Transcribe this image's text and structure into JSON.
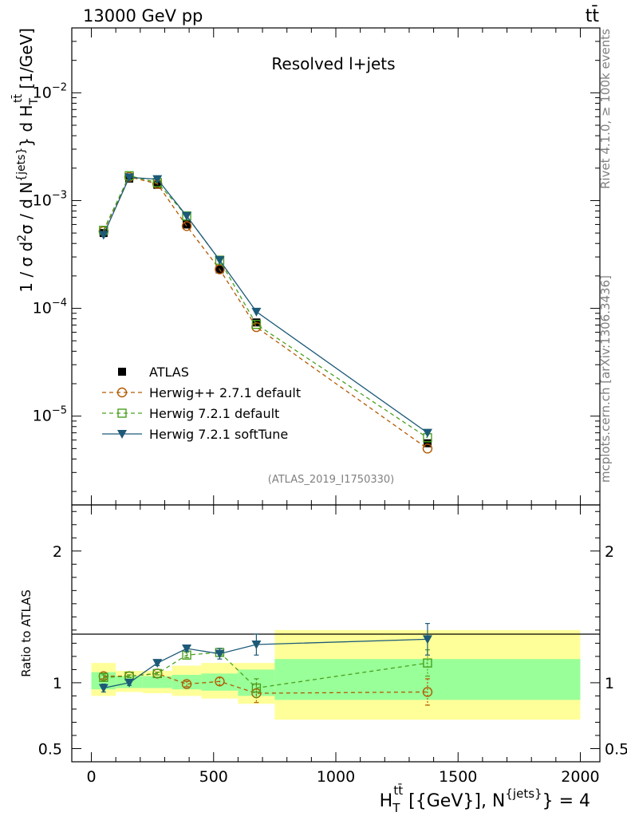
{
  "header": {
    "energy_label": "13000 GeV pp",
    "process": "tt̄"
  },
  "side": {
    "rivet": "Rivet 4.1.0, ≥ 100k events",
    "mcplots": "mcplots.cern.ch [arXiv:1306.3436]"
  },
  "colors": {
    "atlas": "#000000",
    "hpp": "#b35900",
    "h721": "#4b9f1e",
    "soft": "#1c5a78",
    "band_inner": "#99ff99",
    "band_outer": "#ffff99"
  },
  "chart_data": [
    {
      "type": "line",
      "panel": "main",
      "title": "Resolved l+jets",
      "watermark": "(ATLAS_2019_I1750330)",
      "ylabel": "1 / σ d²σ / d N^{jets} d H_T^{t̄t} [1/GeV]",
      "yscale": "log",
      "ylim": [
        1.5e-06,
        0.04
      ],
      "xlim": [
        -80,
        2080
      ],
      "y_ticks": [
        "10^{-5}",
        "10^{-4}",
        "10^{-3}",
        "10^{-2}"
      ],
      "bin_edges": [
        0,
        100,
        210,
        330,
        450,
        600,
        750,
        2000
      ],
      "x": [
        50,
        155,
        270,
        390,
        525,
        675,
        1375
      ],
      "legend": [
        "ATLAS",
        "Herwig++ 2.7.1 default",
        "Herwig 7.2.1 default",
        "Herwig 7.2.1 softTune"
      ],
      "series": [
        {
          "name": "ATLAS",
          "values": [
            0.0005,
            0.0016,
            0.0014,
            0.0006,
            0.00023,
            7.4e-05,
            5.6e-06
          ]
        },
        {
          "name": "Herwig++ 2.7.1 default",
          "values": [
            0.00052,
            0.00166,
            0.00143,
            0.00058,
            0.00023,
            6.7e-05,
            5e-06
          ]
        },
        {
          "name": "Herwig 7.2.1 default",
          "values": [
            0.00053,
            0.0017,
            0.00147,
            0.00072,
            0.00028,
            7.1e-05,
            6.3e-06
          ]
        },
        {
          "name": "Herwig 7.2.1 softTune",
          "values": [
            0.00048,
            0.00164,
            0.00158,
            0.00072,
            0.00028,
            9.3e-05,
            7e-06
          ]
        }
      ]
    },
    {
      "type": "line",
      "panel": "ratio",
      "ylabel": "Ratio to ATLAS",
      "xlabel": "H_T^{t̄t} [{GeV}], N^{jets} = 4",
      "ylim": [
        0.4,
        2.35
      ],
      "xlim": [
        -80,
        2080
      ],
      "x_ticks": [
        0,
        500,
        1000,
        1500,
        2000
      ],
      "x_tick_labels": [
        "0",
        "500",
        "1000",
        "1500",
        "2000"
      ],
      "y_ticks": [
        0.5,
        1,
        2
      ],
      "y_tick_labels": [
        "0.5",
        "1",
        "2"
      ],
      "bin_edges": [
        0,
        100,
        210,
        330,
        450,
        600,
        750,
        2000
      ],
      "band_inner": [
        [
          0.95,
          1.08
        ],
        [
          0.96,
          1.05
        ],
        [
          0.96,
          1.05
        ],
        [
          0.95,
          1.06
        ],
        [
          0.94,
          1.07
        ],
        [
          0.9,
          1.1
        ],
        [
          0.87,
          1.18
        ]
      ],
      "band_outer": [
        [
          0.9,
          1.15
        ],
        [
          0.93,
          1.09
        ],
        [
          0.92,
          1.09
        ],
        [
          0.9,
          1.13
        ],
        [
          0.88,
          1.15
        ],
        [
          0.84,
          1.15
        ],
        [
          0.72,
          1.4
        ]
      ],
      "x": [
        50,
        155,
        270,
        390,
        525,
        675,
        1375
      ],
      "series": [
        {
          "name": "Herwig++ 2.7.1 default",
          "values": [
            1.05,
            1.05,
            1.07,
            0.99,
            1.01,
            0.92,
            0.93
          ],
          "errors": [
            0.02,
            0.01,
            0.01,
            0.02,
            0.03,
            0.07,
            0.1
          ]
        },
        {
          "name": "Herwig 7.2.1 default",
          "values": [
            1.04,
            1.05,
            1.07,
            1.21,
            1.23,
            0.96,
            1.15
          ],
          "errors": [
            0.02,
            0.01,
            0.01,
            0.02,
            0.03,
            0.07,
            0.1
          ]
        },
        {
          "name": "Herwig 7.2.1 softTune",
          "values": [
            0.96,
            1.0,
            1.15,
            1.26,
            1.22,
            1.29,
            1.33
          ],
          "errors": [
            0.03,
            0.02,
            0.02,
            0.02,
            0.04,
            0.08,
            0.12
          ]
        }
      ]
    }
  ]
}
